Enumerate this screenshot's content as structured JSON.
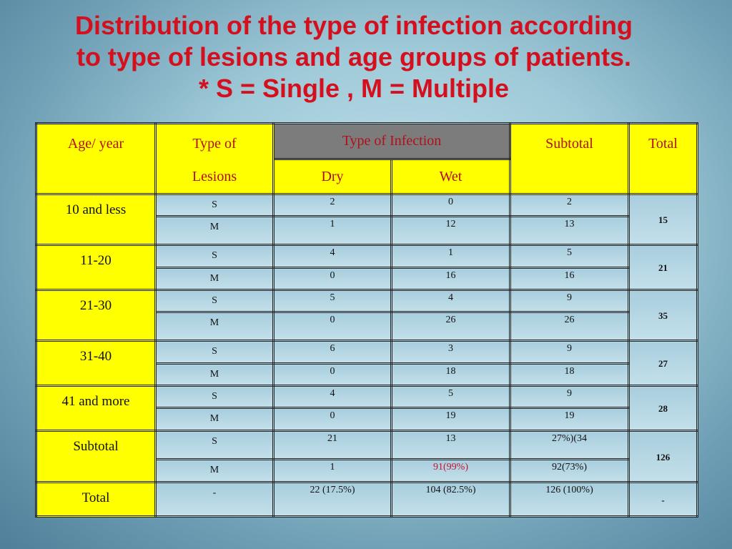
{
  "title": {
    "line1": "Distribution of the type of infection according",
    "line2": "to type of lesions and age groups of patients.",
    "line3": "* S = Single   ,   M = Multiple"
  },
  "table": {
    "headers": {
      "age": "Age/ year",
      "lesions_1": "Type of",
      "lesions_2": "Lesions",
      "infection": "Type of Infection",
      "dry": "Dry",
      "wet": "Wet",
      "subtotal": "Subtotal",
      "total": "Total"
    },
    "groups": [
      {
        "age": "10 and less",
        "total": "15",
        "rows": [
          {
            "lesion": "S",
            "dry": "2",
            "wet": "0",
            "subtotal": "2"
          },
          {
            "lesion": "M",
            "dry": "1",
            "wet": "12",
            "subtotal": "13"
          }
        ]
      },
      {
        "age": "11-20",
        "total": "21",
        "rows": [
          {
            "lesion": "S",
            "dry": "4",
            "wet": "1",
            "subtotal": "5"
          },
          {
            "lesion": "M",
            "dry": "0",
            "wet": "16",
            "subtotal": "16"
          }
        ]
      },
      {
        "age": "21-30",
        "total": "35",
        "rows": [
          {
            "lesion": "S",
            "dry": "5",
            "wet": "4",
            "subtotal": "9"
          },
          {
            "lesion": "M",
            "dry": "0",
            "wet": "26",
            "subtotal": "26"
          }
        ]
      },
      {
        "age": "31-40",
        "total": "27",
        "rows": [
          {
            "lesion": "S",
            "dry": "6",
            "wet": "3",
            "subtotal": "9"
          },
          {
            "lesion": "M",
            "dry": "0",
            "wet": "18",
            "subtotal": "18"
          }
        ]
      },
      {
        "age": "41 and more",
        "total": "28",
        "rows": [
          {
            "lesion": "S",
            "dry": "4",
            "wet": "5",
            "subtotal": "9"
          },
          {
            "lesion": "M",
            "dry": "0",
            "wet": "19",
            "subtotal": "19"
          }
        ]
      },
      {
        "age": "Subtotal",
        "total": "126",
        "rows": [
          {
            "lesion": "S",
            "dry": "21",
            "wet": "13",
            "subtotal": "27%)(34"
          },
          {
            "lesion": "M",
            "dry": "1",
            "wet": "91(99%)",
            "subtotal": "92(73%)"
          }
        ]
      }
    ],
    "total_row": {
      "age": "Total",
      "lesion": "-",
      "dry": "22 (17.5%)",
      "wet": "104 (82.5%)",
      "subtotal": "126 (100%)",
      "total": "-"
    }
  },
  "colors": {
    "title": "#d4101e",
    "header_bg": "#ffff00",
    "header_text": "#b0101a",
    "infection_header_bg": "#7c7c7c",
    "highlight_value": "#c8102e"
  }
}
